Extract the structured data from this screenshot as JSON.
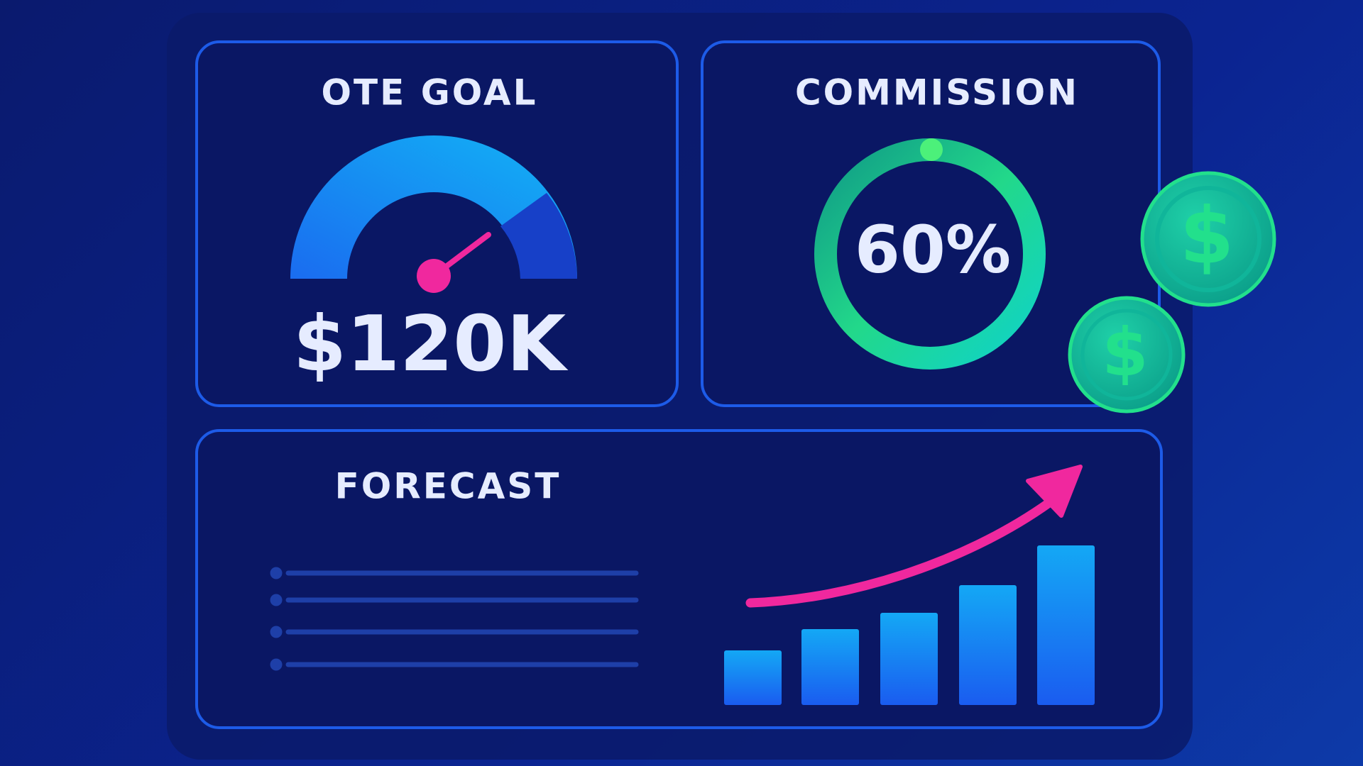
{
  "ote_panel": {
    "title": "OTE GOAL",
    "amount": "$120K"
  },
  "commission_panel": {
    "title": "COMMISSION",
    "percent_label": "60%"
  },
  "forecast_panel": {
    "title": "FORECAST"
  }
}
